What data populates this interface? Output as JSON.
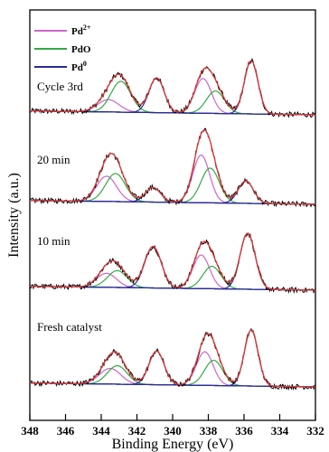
{
  "chart_data": {
    "type": "line",
    "xlabel": "Binding Energy (eV)",
    "ylabel": "Intensity (a.u.)",
    "xlim": [
      348,
      332
    ],
    "x_ticks": [
      348,
      346,
      344,
      342,
      340,
      338,
      336,
      334,
      332
    ],
    "x_reversed": true,
    "y_ticks": false,
    "legend": {
      "placement": "top-left",
      "entries": [
        {
          "base": "Pd",
          "sup": "2+",
          "color": "#cc66cc"
        },
        {
          "base": "PdO",
          "sup": "",
          "color": "#33aa44"
        },
        {
          "base": "Pd",
          "sup": "0",
          "color": "#2a2a9a"
        }
      ]
    },
    "colors": {
      "raw": "#000000",
      "fit": "#e23b3b",
      "pd2": "#cc66cc",
      "pdo": "#33aa44",
      "pd0": "#2a2a9a",
      "background": "#2a2a9a"
    },
    "panels": [
      {
        "label": "Cycle 3rd",
        "peaks": {
          "pd0": [
            {
              "center": 335.6,
              "height": 0.95,
              "fwhm": 0.9
            },
            {
              "center": 340.9,
              "height": 0.62,
              "fwhm": 1.0
            }
          ],
          "pdo": [
            {
              "center": 337.6,
              "height": 0.4,
              "fwhm": 1.2
            },
            {
              "center": 342.9,
              "height": 0.55,
              "fwhm": 1.3
            }
          ],
          "pd2": [
            {
              "center": 338.3,
              "height": 0.62,
              "fwhm": 1.1
            },
            {
              "center": 343.6,
              "height": 0.22,
              "fwhm": 1.4
            }
          ]
        }
      },
      {
        "label": "20 min",
        "peaks": {
          "pd0": [
            {
              "center": 335.9,
              "height": 0.4,
              "fwhm": 1.0
            },
            {
              "center": 341.1,
              "height": 0.26,
              "fwhm": 1.0
            }
          ],
          "pdo": [
            {
              "center": 337.9,
              "height": 0.62,
              "fwhm": 1.2
            },
            {
              "center": 343.2,
              "height": 0.5,
              "fwhm": 1.3
            }
          ],
          "pd2": [
            {
              "center": 338.4,
              "height": 0.85,
              "fwhm": 1.1
            },
            {
              "center": 343.7,
              "height": 0.45,
              "fwhm": 1.3
            }
          ]
        }
      },
      {
        "label": "10 min",
        "peaks": {
          "pd0": [
            {
              "center": 335.8,
              "height": 1.0,
              "fwhm": 1.0
            },
            {
              "center": 341.1,
              "height": 0.74,
              "fwhm": 1.1
            }
          ],
          "pdo": [
            {
              "center": 337.8,
              "height": 0.4,
              "fwhm": 1.2
            },
            {
              "center": 343.1,
              "height": 0.3,
              "fwhm": 1.3
            }
          ],
          "pd2": [
            {
              "center": 338.4,
              "height": 0.6,
              "fwhm": 1.1
            },
            {
              "center": 343.7,
              "height": 0.25,
              "fwhm": 1.3
            }
          ]
        }
      },
      {
        "label": "Fresh catalyst",
        "peaks": {
          "pd0": [
            {
              "center": 335.6,
              "height": 1.0,
              "fwhm": 0.9
            },
            {
              "center": 340.9,
              "height": 0.6,
              "fwhm": 1.0
            }
          ],
          "pdo": [
            {
              "center": 337.7,
              "height": 0.45,
              "fwhm": 1.2
            },
            {
              "center": 343.1,
              "height": 0.33,
              "fwhm": 1.3
            }
          ],
          "pd2": [
            {
              "center": 338.2,
              "height": 0.6,
              "fwhm": 1.1
            },
            {
              "center": 343.5,
              "height": 0.28,
              "fwhm": 1.4
            }
          ]
        }
      }
    ]
  }
}
